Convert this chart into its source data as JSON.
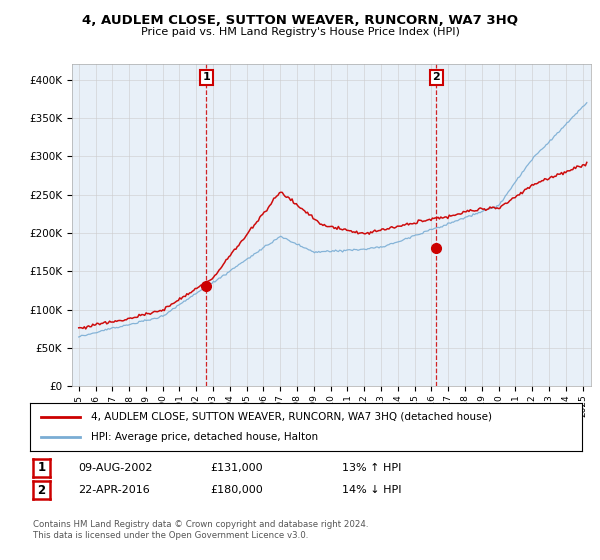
{
  "title": "4, AUDLEM CLOSE, SUTTON WEAVER, RUNCORN, WA7 3HQ",
  "subtitle": "Price paid vs. HM Land Registry's House Price Index (HPI)",
  "legend_line1": "4, AUDLEM CLOSE, SUTTON WEAVER, RUNCORN, WA7 3HQ (detached house)",
  "legend_line2": "HPI: Average price, detached house, Halton",
  "transaction1": {
    "label": "1",
    "date": "09-AUG-2002",
    "price": "£131,000",
    "hpi": "13% ↑ HPI",
    "year": 2002.6
  },
  "transaction2": {
    "label": "2",
    "date": "22-APR-2016",
    "price": "£180,000",
    "hpi": "14% ↓ HPI",
    "year": 2016.3
  },
  "footer1": "Contains HM Land Registry data © Crown copyright and database right 2024.",
  "footer2": "This data is licensed under the Open Government Licence v3.0.",
  "red_color": "#cc0000",
  "blue_color": "#7aadd4",
  "background_color": "#ffffff",
  "grid_color": "#cccccc",
  "plot_bg": "#e8f0f8"
}
